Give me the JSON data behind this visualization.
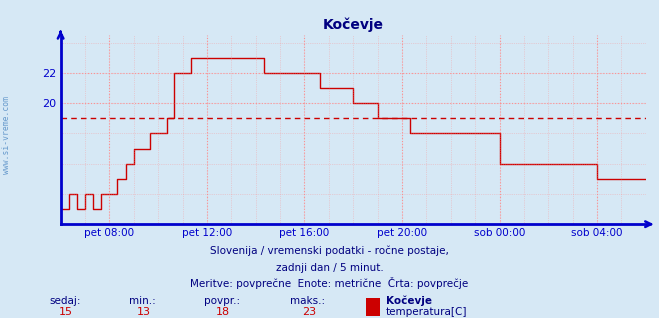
{
  "title": "Kočevje",
  "title_color": "#000080",
  "title_fontsize": 10,
  "bg_color": "#d6e8f5",
  "line_color": "#cc0000",
  "axis_color": "#0000cc",
  "grid_color": "#ff8888",
  "dashed_line_color": "#cc0000",
  "dashed_line_value": 19.0,
  "ylabel_text": "www.si-vreme.com",
  "ylabel_color": "#6699cc",
  "footer_line1": "Slovenija / vremenski podatki - ročne postaje,",
  "footer_line2": "zadnji dan / 5 minut.",
  "footer_line3": "Meritve: povprečne  Enote: metrične  Črta: povprečje",
  "footer_color": "#000080",
  "footer_fontsize": 7.5,
  "stats_label_color": "#000080",
  "stats_value_color": "#cc0000",
  "legend_name": "Kočevje",
  "legend_label": "temperatura[C]",
  "legend_color": "#cc0000",
  "sedaj": 15,
  "min_val": 13,
  "povpr_val": 18,
  "maks_val": 23,
  "ylim": [
    12.0,
    24.5
  ],
  "xlim": [
    0.0,
    1.0
  ],
  "ytick_vals": [
    20,
    22
  ],
  "xtick_positions": [
    0.0833,
    0.25,
    0.4167,
    0.5833,
    0.75,
    0.9167
  ],
  "xtick_labels": [
    "pet 08:00",
    "pet 12:00",
    "pet 16:00",
    "pet 20:00",
    "sob 00:00",
    "sob 04:00"
  ],
  "time_values": [
    0.0,
    0.014,
    0.028,
    0.042,
    0.056,
    0.069,
    0.083,
    0.097,
    0.111,
    0.125,
    0.139,
    0.153,
    0.167,
    0.181,
    0.194,
    0.208,
    0.222,
    0.236,
    0.25,
    0.264,
    0.278,
    0.292,
    0.306,
    0.319,
    0.333,
    0.347,
    0.361,
    0.375,
    0.389,
    0.403,
    0.417,
    0.431,
    0.444,
    0.458,
    0.472,
    0.486,
    0.5,
    0.514,
    0.528,
    0.542,
    0.556,
    0.569,
    0.583,
    0.597,
    0.611,
    0.625,
    0.639,
    0.653,
    0.667,
    0.681,
    0.694,
    0.708,
    0.722,
    0.736,
    0.75,
    0.764,
    0.778,
    0.792,
    0.806,
    0.819,
    0.833,
    0.847,
    0.861,
    0.875,
    0.889,
    0.903,
    0.917,
    0.931,
    0.944,
    0.958,
    0.972,
    1.0
  ],
  "temp_values": [
    13,
    14,
    13,
    14,
    13,
    14,
    14,
    15,
    16,
    17,
    17,
    18,
    18,
    19,
    22,
    22,
    23,
    23,
    23,
    23,
    23,
    23,
    23,
    23,
    23,
    22,
    22,
    22,
    22,
    22,
    22,
    22,
    21,
    21,
    21,
    21,
    20,
    20,
    20,
    19,
    19,
    19,
    19,
    18,
    18,
    18,
    18,
    18,
    18,
    18,
    18,
    18,
    18,
    18,
    16,
    16,
    16,
    16,
    16,
    16,
    16,
    16,
    16,
    16,
    16,
    16,
    15,
    15,
    15,
    15,
    15,
    15
  ]
}
